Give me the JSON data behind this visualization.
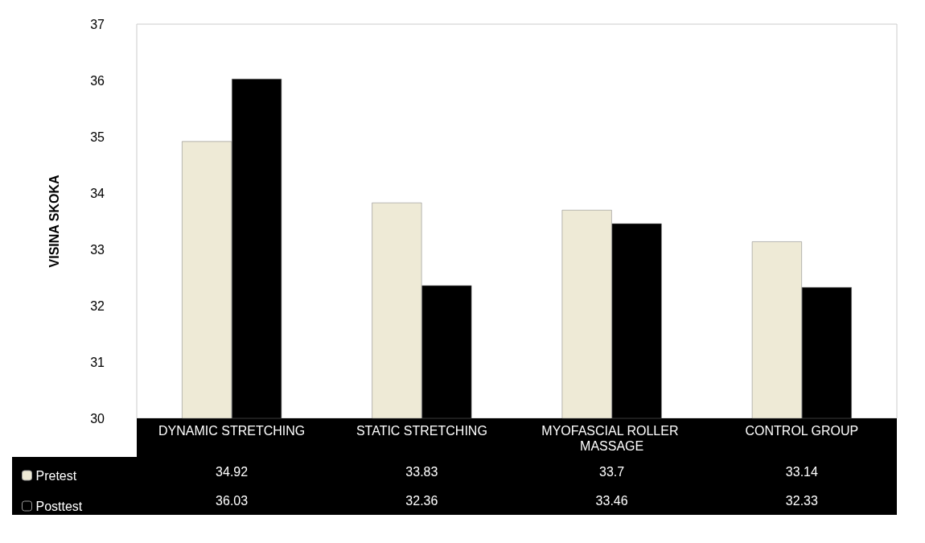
{
  "chart_data": {
    "type": "bar",
    "ylabel": "VISINA SKOKA",
    "categories": [
      "DYNAMIC STRETCHING",
      "STATIC STRETCHING",
      "MYOFASCIAL ROLLER MASSAGE",
      "CONTROL GROUP"
    ],
    "series": [
      {
        "name": "Pretest",
        "color": "#eeead6",
        "values": [
          34.92,
          33.83,
          33.7,
          33.14
        ]
      },
      {
        "name": "Posttest",
        "color": "#000000",
        "values": [
          36.03,
          32.36,
          33.46,
          32.33
        ]
      }
    ],
    "ylim": [
      30,
      37
    ],
    "yticks": [
      30,
      31,
      32,
      33,
      34,
      35,
      36,
      37
    ],
    "grid": false,
    "legend": "bottom left",
    "data_labels": true
  }
}
